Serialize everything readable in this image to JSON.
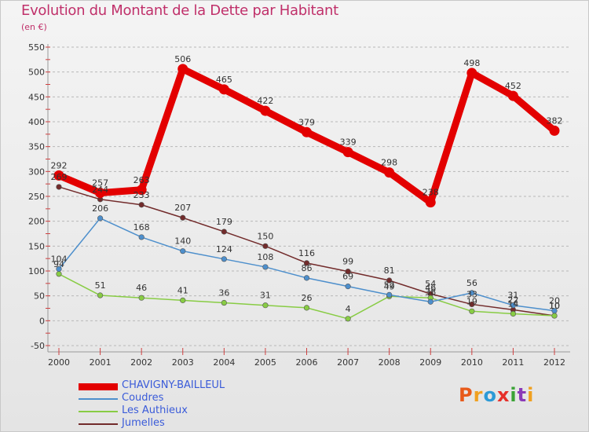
{
  "title": "Evolution du Montant de la Dette par Habitant",
  "subtitle": "(en €)",
  "logo": {
    "text": "Proxiti",
    "colors": [
      "#e85a1a",
      "#f0a020",
      "#2c9ad6",
      "#e6302a",
      "#3aa336",
      "#8a3ab8",
      "#f0a020"
    ]
  },
  "chart_data": {
    "type": "line",
    "title": "Evolution du Montant de la Dette par Habitant",
    "ylabel": "(en €)",
    "xlabel": "",
    "x": [
      "2000",
      "2001",
      "2002",
      "2003",
      "2004",
      "2005",
      "2006",
      "2007",
      "2008",
      "2009",
      "2010",
      "2011",
      "2012"
    ],
    "ylim": [
      -50,
      550
    ],
    "yticks": [
      -50,
      0,
      50,
      100,
      150,
      200,
      250,
      300,
      350,
      400,
      450,
      500,
      550
    ],
    "grid": "horizontal-dashed",
    "legend_position": "bottom-left",
    "series": [
      {
        "name": "CHAVIGNY-BAILLEUL",
        "color": "#e30000",
        "values": [
          292,
          257,
          263,
          506,
          465,
          422,
          379,
          339,
          298,
          238,
          498,
          452,
          382
        ]
      },
      {
        "name": "Coudres",
        "color": "#4d8fcc",
        "values": [
          104,
          206,
          168,
          140,
          124,
          108,
          86,
          69,
          52,
          38,
          56,
          31,
          20
        ]
      },
      {
        "name": "Les Authieux",
        "color": "#88cc44",
        "values": [
          94,
          51,
          46,
          41,
          36,
          31,
          26,
          4,
          49,
          46,
          19,
          14,
          10
        ]
      },
      {
        "name": "Jumelles",
        "color": "#722b2b",
        "values": [
          269,
          244,
          233,
          207,
          179,
          150,
          116,
          99,
          81,
          54,
          33,
          22,
          10
        ]
      }
    ]
  }
}
